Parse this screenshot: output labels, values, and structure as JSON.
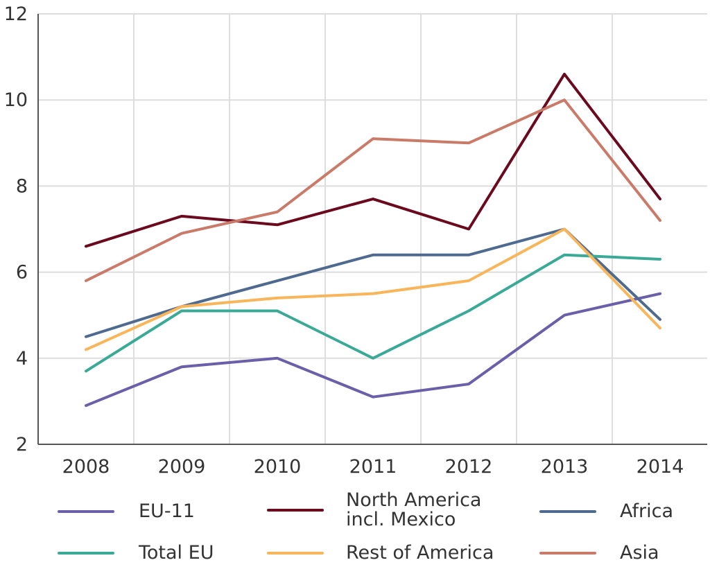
{
  "chart_data": {
    "type": "line",
    "title": "",
    "xlabel": "",
    "ylabel": "",
    "x": [
      "2008",
      "2009",
      "2010",
      "2011",
      "2012",
      "2013",
      "2014"
    ],
    "ylim": [
      2,
      12
    ],
    "yticks": [
      "2",
      "4",
      "6",
      "8",
      "10",
      "12"
    ],
    "grid": true,
    "legend_position": "bottom",
    "series": [
      {
        "name": "EU-11",
        "color": "#6a5fa8",
        "values": [
          2.9,
          3.8,
          4.0,
          3.1,
          3.4,
          5.0,
          5.5
        ]
      },
      {
        "name": "North America incl. Mexico",
        "color": "#6b0a1f",
        "values": [
          6.6,
          7.3,
          7.1,
          7.7,
          7.0,
          10.6,
          7.7
        ]
      },
      {
        "name": "Africa",
        "color": "#4f6a8f",
        "values": [
          4.5,
          5.2,
          5.8,
          6.4,
          6.4,
          7.0,
          4.9
        ]
      },
      {
        "name": "Total EU",
        "color": "#3aaa96",
        "values": [
          3.7,
          5.1,
          5.1,
          4.0,
          5.1,
          6.4,
          6.3
        ]
      },
      {
        "name": "Rest of America",
        "color": "#f8b55a",
        "values": [
          4.2,
          5.2,
          5.4,
          5.5,
          5.8,
          7.0,
          4.7
        ]
      },
      {
        "name": "Asia",
        "color": "#c97a68",
        "values": [
          5.8,
          6.9,
          7.4,
          9.1,
          9.0,
          10.0,
          7.2
        ]
      }
    ]
  }
}
